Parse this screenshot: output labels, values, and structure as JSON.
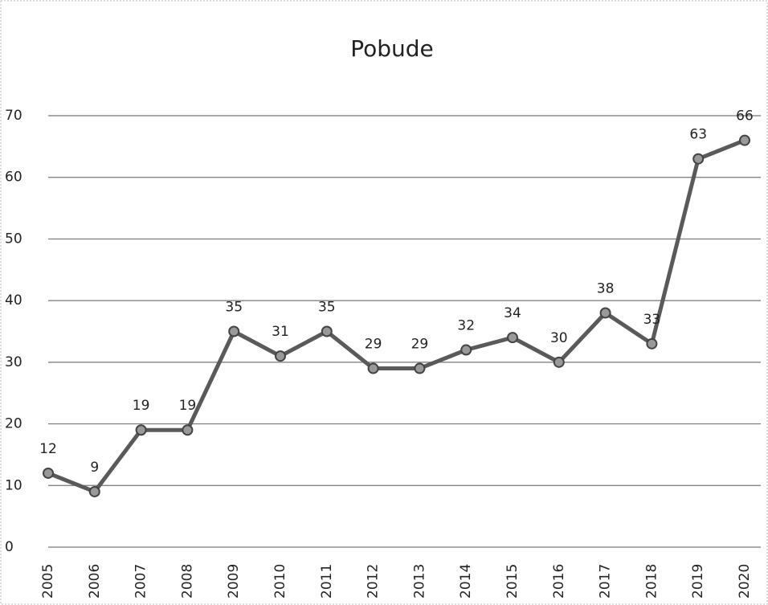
{
  "chart_data": {
    "type": "line",
    "title": "Pobude",
    "categories": [
      "2005",
      "2006",
      "2007",
      "2008",
      "2009",
      "2010",
      "2011",
      "2012",
      "2013",
      "2014",
      "2015",
      "2016",
      "2017",
      "2018",
      "2019",
      "2020"
    ],
    "values": [
      12,
      9,
      19,
      19,
      35,
      31,
      35,
      29,
      29,
      32,
      34,
      30,
      38,
      33,
      63,
      66
    ],
    "color": "#5a5a5a",
    "ylim": [
      0,
      70
    ],
    "yticks": [
      0,
      10,
      20,
      30,
      40,
      50,
      60,
      70
    ],
    "grid": true
  }
}
